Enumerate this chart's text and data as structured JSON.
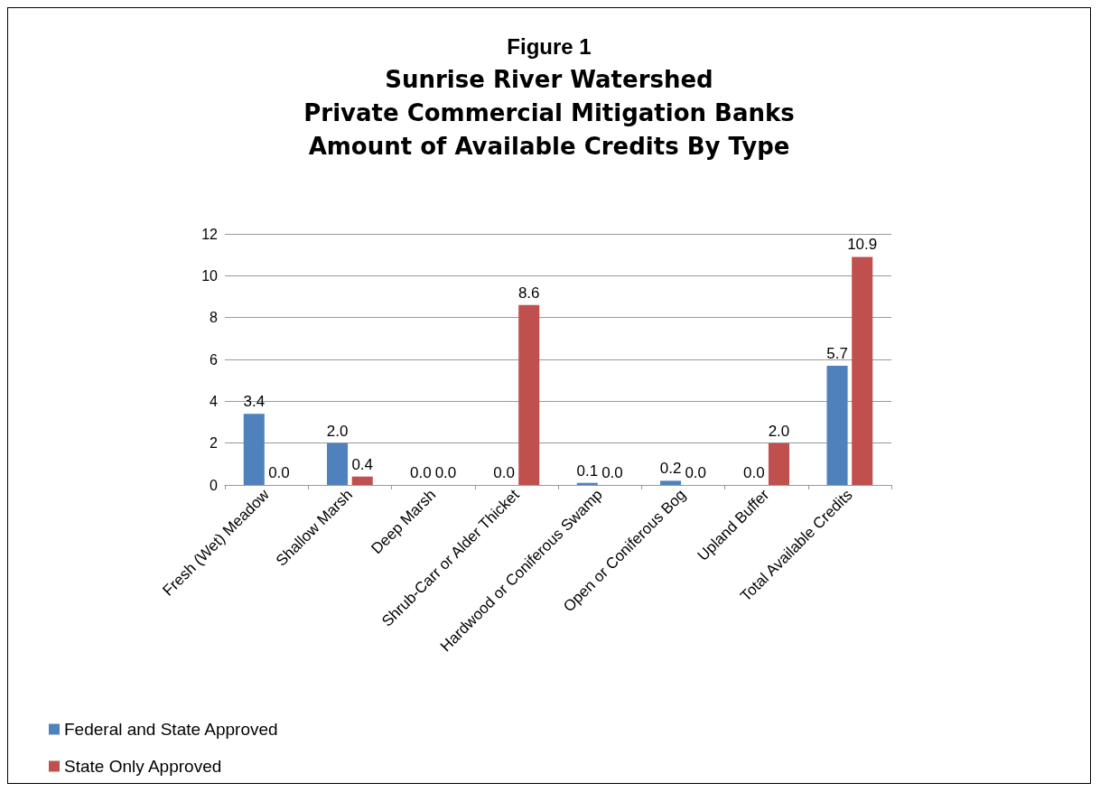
{
  "chart_data": {
    "type": "bar",
    "title": "Figure 1",
    "subtitle": "Sunrise River Watershed\nPrivate Commercial Mitigation Banks\nAmount of Available Credits By Type",
    "categories": [
      "Fresh (Wet) Meadow",
      "Shallow Marsh",
      "Deep Marsh",
      "Shrub-Carr or Alder Thicket",
      "Hardwood or Coniferous Swamp",
      "Open or Coniferous Bog",
      "Upland Buffer",
      "Total Available Credits"
    ],
    "series": [
      {
        "name": "Federal and State Approved",
        "color": "#4f81bd",
        "values": [
          3.4,
          2.0,
          0.0,
          0.0,
          0.1,
          0.2,
          0.0,
          5.7
        ],
        "value_labels": [
          "3.4",
          "2.0",
          "0.0",
          "0.0",
          "0.1",
          "0.2",
          "0.0",
          "5.7"
        ]
      },
      {
        "name": "State Only Approved",
        "color": "#c0504d",
        "values": [
          0.0,
          0.4,
          0.0,
          8.6,
          0.0,
          0.0,
          2.0,
          10.9
        ],
        "value_labels": [
          "0.0",
          "0.4",
          "0.0",
          "8.6",
          "0.0",
          "0.0",
          "2.0",
          "10.9"
        ]
      }
    ],
    "ylim": [
      0,
      12
    ],
    "yticks": [
      0,
      2,
      4,
      6,
      8,
      10,
      12
    ],
    "grid": "y",
    "legend": "bottom left"
  }
}
